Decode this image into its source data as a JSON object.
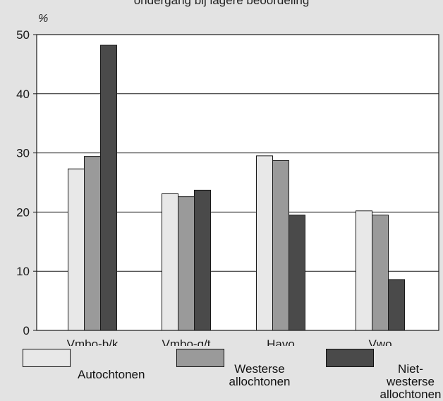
{
  "cut_title": "ondergang bij lagere beoordeling",
  "chart_data": {
    "type": "bar",
    "ylabel": "%",
    "ylim": [
      0,
      50
    ],
    "yticks": [
      0,
      10,
      20,
      30,
      40,
      50
    ],
    "grid": true,
    "legend_position": "bottom",
    "categories": [
      "Vmbo-b/k",
      "Vmbo-g/t",
      "Havo",
      "Vwo"
    ],
    "series": [
      {
        "name": "Autochtonen",
        "color": "#e8e8e8",
        "values": [
          27.3,
          23.1,
          29.5,
          20.2
        ]
      },
      {
        "name": "Westerse allochtonen",
        "color": "#9a9a9a",
        "values": [
          29.4,
          22.6,
          28.7,
          19.5
        ]
      },
      {
        "name": "Niet-westerse allochtonen",
        "color": "#4a4a4a",
        "values": [
          48.2,
          23.7,
          19.5,
          8.6
        ]
      }
    ]
  },
  "legend": [
    {
      "label": "Autochtonen"
    },
    {
      "label": "Westerse\nallochtonen"
    },
    {
      "label": "Niet-westerse\nallochtonen"
    }
  ]
}
